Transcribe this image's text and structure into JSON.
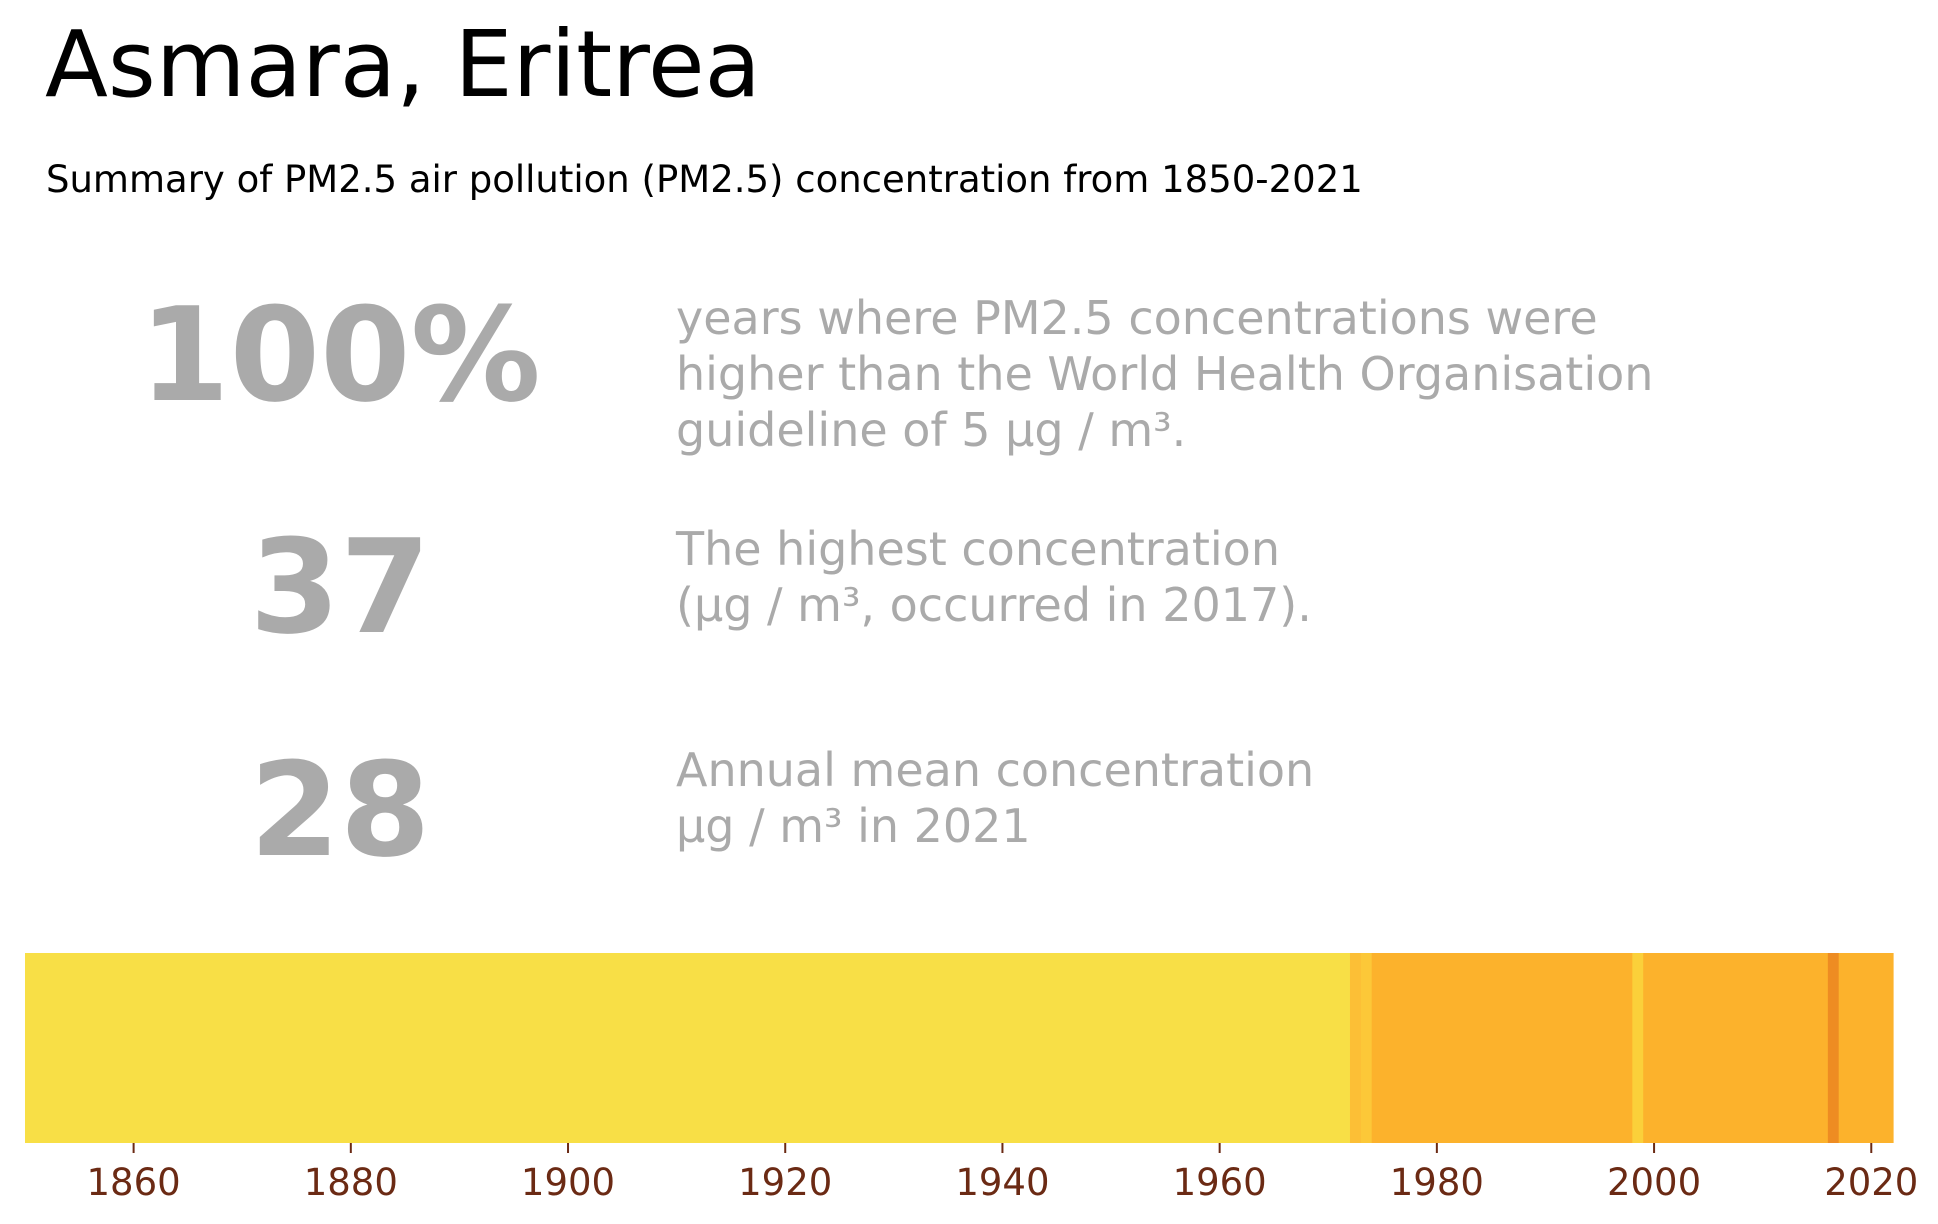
{
  "header": {
    "title": "Asmara, Eritrea",
    "subtitle": "Summary of PM2.5 air pollution (PM2.5) concentration from 1850-2021"
  },
  "stats": [
    {
      "value": "100%",
      "lines": [
        "years where PM2.5 concentrations were",
        "higher than the World Health Organisation",
        "guideline of 5 µg / m³."
      ]
    },
    {
      "value": "37",
      "lines": [
        "The highest concentration",
        "(µg / m³, occurred in 2017)."
      ]
    },
    {
      "value": "28",
      "lines": [
        "Annual mean concentration",
        "µg / m³ in 2021"
      ]
    }
  ],
  "chart_data": {
    "type": "heatmap",
    "x": {
      "label": "",
      "range": [
        1850,
        2022
      ],
      "ticks": [
        1860,
        1880,
        1900,
        1920,
        1940,
        1960,
        1980,
        2000,
        2020
      ],
      "tick_labels": [
        "1860",
        "1880",
        "1900",
        "1920",
        "1940",
        "1960",
        "1980",
        "2000",
        "2020"
      ]
    },
    "segments": [
      {
        "start": 1850,
        "end": 1972,
        "color": "#f8df46"
      },
      {
        "start": 1972,
        "end": 1973,
        "color": "#fcbf36"
      },
      {
        "start": 1973,
        "end": 1974,
        "color": "#fcc838"
      },
      {
        "start": 1974,
        "end": 1998,
        "color": "#fcb22c"
      },
      {
        "start": 1998,
        "end": 1999,
        "color": "#fbd03a"
      },
      {
        "start": 1999,
        "end": 2016,
        "color": "#fcb22c"
      },
      {
        "start": 2016,
        "end": 2017,
        "color": "#ee8c22"
      },
      {
        "start": 2017,
        "end": 2022,
        "color": "#fcb22c"
      }
    ],
    "grid": false,
    "legend": "none"
  }
}
